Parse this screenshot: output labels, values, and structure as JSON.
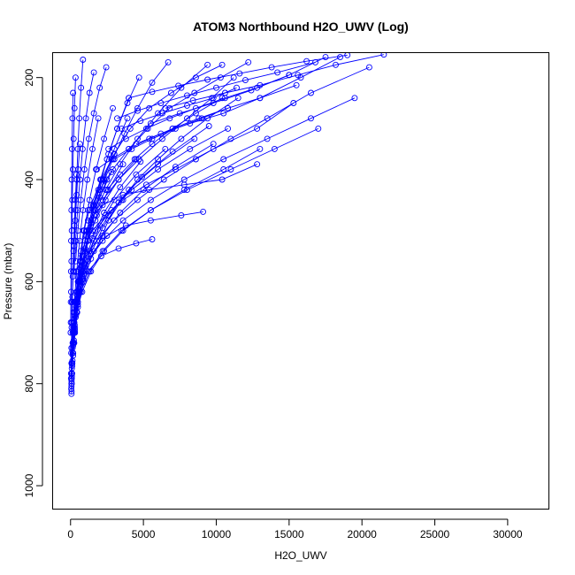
{
  "chart_data": {
    "type": "line",
    "title": "ATOM3 Northbound H2O_UWV (Log)",
    "xlabel": "H2O_UWV",
    "ylabel": "Pressure (mbar)",
    "xlim": [
      -1200,
      32800
    ],
    "ylim": [
      1045,
      152
    ],
    "y_reversed": true,
    "x_ticks": [
      0,
      5000,
      10000,
      15000,
      20000,
      25000,
      30000
    ],
    "x_tick_labels": [
      "0",
      "5000",
      "10000",
      "15000",
      "20000",
      "25000",
      "30000"
    ],
    "y_ticks": [
      200,
      400,
      600,
      800,
      1000
    ],
    "y_tick_labels": [
      "200",
      "400",
      "600",
      "800",
      "1000"
    ],
    "series_color": "#0000ff",
    "marker": "open-circle",
    "grid": false,
    "legend": "none",
    "series": [
      {
        "x": [
          60,
          80,
          110,
          150,
          220,
          320,
          480,
          700,
          900,
          1200
        ],
        "y": [
          820,
          790,
          760,
          720,
          680,
          640,
          590,
          540,
          500,
          460
        ]
      },
      {
        "x": [
          70,
          100,
          160,
          240,
          380,
          600,
          900,
          1300,
          1800,
          2500
        ],
        "y": [
          815,
          780,
          740,
          700,
          650,
          600,
          550,
          500,
          450,
          400
        ]
      },
      {
        "x": [
          50,
          90,
          140,
          220,
          350,
          520,
          800,
          1100,
          1600,
          2200,
          3000
        ],
        "y": [
          810,
          770,
          730,
          690,
          640,
          600,
          550,
          500,
          450,
          400,
          350
        ]
      },
      {
        "x": [
          80,
          120,
          200,
          330,
          500,
          800,
          1200,
          1800,
          2600,
          3600
        ],
        "y": [
          800,
          760,
          720,
          670,
          620,
          570,
          520,
          470,
          420,
          370
        ]
      },
      {
        "x": [
          100,
          180,
          300,
          500,
          800,
          1300,
          2000,
          3000,
          4500,
          6500
        ],
        "y": [
          780,
          740,
          690,
          640,
          590,
          540,
          490,
          440,
          390,
          340
        ]
      },
      {
        "x": [
          120,
          200,
          350,
          600,
          1000,
          1600,
          2600,
          4000,
          6000,
          8500
        ],
        "y": [
          760,
          720,
          670,
          620,
          570,
          520,
          470,
          420,
          370,
          320
        ]
      },
      {
        "x": [
          150,
          300,
          500,
          900,
          1400,
          2200,
          3400,
          5000,
          7200,
          9800
        ],
        "y": [
          740,
          700,
          650,
          600,
          555,
          510,
          465,
          420,
          375,
          330
        ]
      },
      {
        "x": [
          200,
          400,
          800,
          1400,
          2300,
          3600,
          5500,
          7800,
          10500,
          13000
        ],
        "y": [
          700,
          660,
          620,
          580,
          540,
          500,
          460,
          420,
          380,
          340
        ]
      },
      {
        "x": [
          300,
          700,
          1300,
          2200,
          3500,
          5500,
          8000,
          11000,
          14000,
          17000
        ],
        "y": [
          660,
          620,
          580,
          540,
          500,
          460,
          420,
          380,
          340,
          300
        ]
      },
      {
        "x": [
          500,
          1200,
          2200,
          3600,
          5500,
          7800,
          10500,
          13500,
          16500,
          19500
        ],
        "y": [
          600,
          560,
          520,
          480,
          440,
          400,
          360,
          320,
          280,
          240
        ]
      },
      {
        "x": [
          800,
          1800,
          3000,
          4600,
          6400,
          8600,
          11000,
          13500,
          16500,
          20500
        ],
        "y": [
          560,
          520,
          480,
          440,
          400,
          360,
          320,
          280,
          230,
          180
        ]
      },
      {
        "x": [
          400,
          900,
          1700,
          2800,
          4200,
          6000,
          8200,
          10800
        ],
        "y": [
          580,
          540,
          500,
          460,
          420,
          380,
          340,
          300
        ]
      },
      {
        "x": [
          60,
          110,
          180,
          280,
          450,
          700,
          1000,
          1400,
          2000,
          2800
        ],
        "y": [
          805,
          765,
          725,
          685,
          635,
          585,
          535,
          485,
          435,
          385
        ]
      },
      {
        "x": [
          70,
          130,
          220,
          380,
          620,
          950,
          1500,
          2300,
          3400,
          4800
        ],
        "y": [
          795,
          755,
          715,
          665,
          615,
          565,
          515,
          465,
          415,
          365
        ]
      },
      {
        "x": [
          90,
          170,
          300,
          500,
          850,
          1400,
          2200,
          3300,
          4900,
          7000,
          9500
        ],
        "y": [
          785,
          745,
          695,
          645,
          595,
          545,
          495,
          445,
          395,
          345,
          295
        ]
      },
      {
        "x": [
          60,
          100,
          150,
          240,
          380,
          560,
          820,
          1200,
          1700,
          2400,
          3300,
          4500
        ],
        "y": [
          800,
          760,
          720,
          680,
          640,
          600,
          560,
          520,
          480,
          440,
          400,
          360
        ]
      },
      {
        "x": [
          2000,
          2600,
          3500,
          4600,
          6000,
          7600,
          9400,
          11500
        ],
        "y": [
          520,
          480,
          440,
          400,
          360,
          320,
          280,
          240
        ]
      },
      {
        "x": [
          1500,
          2400,
          3600,
          5200,
          7200,
          9800,
          12800,
          15300
        ],
        "y": [
          500,
          470,
          440,
          410,
          380,
          340,
          300,
          250
        ]
      },
      {
        "x": [
          400,
          900,
          1600,
          2500,
          3800,
          5500,
          7600,
          9100
        ],
        "y": [
          620,
          580,
          540,
          510,
          490,
          480,
          470,
          463
        ]
      },
      {
        "x": [
          200,
          600,
          1200,
          2100,
          3300,
          4500,
          5600
        ],
        "y": [
          660,
          620,
          580,
          550,
          535,
          525,
          517
        ]
      },
      {
        "x": [
          1200,
          2200,
          3600,
          5400,
          7800,
          10400,
          12800
        ],
        "y": [
          480,
          450,
          430,
          420,
          410,
          400,
          370
        ]
      },
      {
        "x": [
          300,
          500,
          800,
          1200,
          1700,
          2300,
          3000,
          3900
        ],
        "y": [
          700,
          640,
          580,
          520,
          460,
          400,
          340,
          280
        ]
      },
      {
        "x": [
          250,
          450,
          700,
          1000,
          1400,
          1900,
          2500,
          3200,
          4000
        ],
        "y": [
          720,
          660,
          600,
          540,
          480,
          420,
          360,
          300,
          240
        ]
      },
      {
        "x": [
          150,
          260,
          420,
          650,
          950,
          1300,
          1750,
          2300,
          2900
        ],
        "y": [
          740,
          680,
          620,
          560,
          500,
          440,
          380,
          320,
          260
        ]
      },
      {
        "x": [
          60,
          140,
          260,
          420,
          620,
          860,
          1150,
          1500,
          1900
        ],
        "y": [
          760,
          700,
          640,
          580,
          520,
          460,
          400,
          340,
          280
        ]
      },
      {
        "x": [
          2500,
          3400,
          4400,
          5600,
          7000,
          8600,
          10400
        ],
        "y": [
          420,
          390,
          360,
          330,
          300,
          270,
          240
        ]
      },
      {
        "x": [
          3000,
          4200,
          5600,
          7200,
          9000,
          10800
        ],
        "y": [
          360,
          340,
          320,
          300,
          280,
          260
        ]
      },
      {
        "x": [
          3500,
          4800,
          6300,
          8000,
          9800,
          11400
        ],
        "y": [
          300,
          285,
          270,
          255,
          240,
          220
        ]
      },
      {
        "x": [
          100,
          180,
          260,
          340,
          420,
          500,
          600,
          720,
          850
        ],
        "y": [
          640,
          580,
          520,
          460,
          400,
          340,
          280,
          220,
          165
        ]
      },
      {
        "x": [
          20,
          40,
          60,
          90,
          120,
          160,
          210,
          270,
          340
        ],
        "y": [
          680,
          620,
          560,
          500,
          440,
          380,
          320,
          260,
          200
        ]
      },
      {
        "x": [
          10,
          20,
          30,
          45,
          60,
          80,
          100,
          130,
          170
        ],
        "y": [
          700,
          640,
          580,
          520,
          460,
          400,
          340,
          280,
          230
        ]
      },
      {
        "x": [
          4500,
          6200,
          8200,
          10500,
          13000,
          15800,
          18500
        ],
        "y": [
          330,
          310,
          290,
          270,
          240,
          200,
          160
        ]
      },
      {
        "x": [
          5500,
          7500,
          9800,
          12400,
          15000,
          17500
        ],
        "y": [
          290,
          270,
          250,
          225,
          195,
          160
        ]
      },
      {
        "x": [
          6500,
          8400,
          10600,
          13000,
          15600,
          18200,
          21500
        ],
        "y": [
          260,
          245,
          230,
          215,
          195,
          175,
          155
        ]
      },
      {
        "x": [
          2200,
          3300,
          4700,
          6300,
          8000,
          9700,
          11200
        ],
        "y": [
          440,
          400,
          360,
          320,
          280,
          240,
          200
        ]
      },
      {
        "x": [
          1000,
          1600,
          2400,
          3400,
          4600,
          6000,
          7600,
          9400
        ],
        "y": [
          520,
          470,
          420,
          370,
          320,
          270,
          220,
          175
        ]
      },
      {
        "x": [
          700,
          1100,
          1600,
          2200,
          2900,
          3700,
          4600,
          5600,
          6700
        ],
        "y": [
          560,
          510,
          460,
          410,
          360,
          310,
          260,
          210,
          170
        ]
      },
      {
        "x": [
          550,
          800,
          1150,
          1550,
          2050,
          2600,
          3200,
          3900,
          4700
        ],
        "y": [
          600,
          550,
          500,
          450,
          400,
          350,
          300,
          250,
          200
        ]
      },
      {
        "x": [
          40,
          60,
          90,
          130,
          180,
          250,
          330,
          420,
          520,
          640
        ],
        "y": [
          780,
          730,
          680,
          630,
          580,
          530,
          480,
          430,
          380,
          330
        ]
      },
      {
        "x": [
          30,
          50,
          75,
          110,
          150,
          200,
          260,
          330,
          410
        ],
        "y": [
          790,
          740,
          690,
          640,
          590,
          540,
          490,
          440,
          390
        ]
      },
      {
        "x": [
          1800,
          2800,
          4000,
          5400,
          7000,
          8800,
          10800,
          13000,
          15500
        ],
        "y": [
          380,
          360,
          340,
          320,
          300,
          280,
          260,
          240,
          215
        ]
      },
      {
        "x": [
          2600,
          3800,
          5200,
          6800,
          8600,
          10600,
          12800,
          15000
        ],
        "y": [
          340,
          320,
          300,
          280,
          260,
          240,
          220,
          195
        ]
      },
      {
        "x": [
          3200,
          4600,
          6200,
          8000,
          10000,
          12000,
          14200,
          16800
        ],
        "y": [
          280,
          265,
          250,
          235,
          220,
          205,
          190,
          170
        ]
      },
      {
        "x": [
          4000,
          5600,
          7400,
          9400,
          11600,
          13800,
          16200,
          19000
        ],
        "y": [
          240,
          228,
          216,
          204,
          192,
          180,
          168,
          156
        ]
      },
      {
        "x": [
          900,
          1400,
          2100,
          3000,
          4100,
          5400,
          6900,
          8600,
          10400
        ],
        "y": [
          500,
          450,
          400,
          350,
          300,
          260,
          230,
          200,
          175
        ]
      },
      {
        "x": [
          1300,
          2000,
          2900,
          4000,
          5300,
          6800,
          8500,
          10300,
          12200
        ],
        "y": [
          460,
          420,
          380,
          340,
          300,
          260,
          230,
          200,
          170
        ]
      },
      {
        "x": [
          350,
          500,
          700,
          950,
          1250,
          1600,
          2000,
          2450
        ],
        "y": [
          560,
          500,
          440,
          380,
          320,
          270,
          220,
          180
        ]
      },
      {
        "x": [
          250,
          350,
          480,
          640,
          830,
          1050,
          1300,
          1600
        ],
        "y": [
          580,
          520,
          460,
          400,
          340,
          280,
          230,
          190
        ]
      }
    ]
  }
}
